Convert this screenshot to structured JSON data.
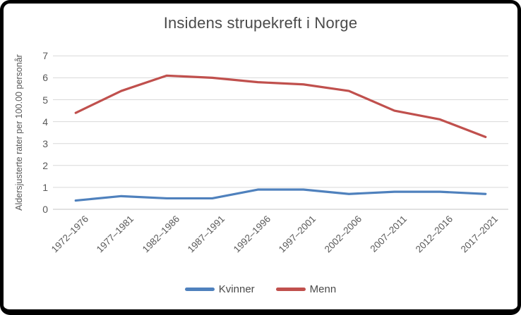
{
  "chart_data": {
    "type": "line",
    "title": "Insidens strupekreft i Norge",
    "ylabel": "Aldersjusterte rater per 100.00 personår",
    "xlabel": "",
    "categories": [
      "1972–1976",
      "1977–1981",
      "1982–1986",
      "1987–1991",
      "1992–1996",
      "1997–2001",
      "2002–2006",
      "2007–2011",
      "2012–2016",
      "2017–2021"
    ],
    "series": [
      {
        "name": "Kvinner",
        "color": "#4F81BD",
        "values": [
          0.4,
          0.6,
          0.5,
          0.5,
          0.9,
          0.9,
          0.7,
          0.8,
          0.8,
          0.7
        ]
      },
      {
        "name": "Menn",
        "color": "#C0504D",
        "values": [
          4.4,
          5.4,
          6.1,
          6.0,
          5.8,
          5.7,
          5.4,
          4.5,
          4.1,
          3.3
        ]
      }
    ],
    "ylim": [
      0,
      7
    ],
    "yticks": [
      0,
      1,
      2,
      3,
      4,
      5,
      6,
      7
    ],
    "grid": true,
    "legend_position": "bottom",
    "gridline_color": "#d9d9d9",
    "axis_line_color": "#c3c3c3",
    "text_color": "#595959"
  }
}
